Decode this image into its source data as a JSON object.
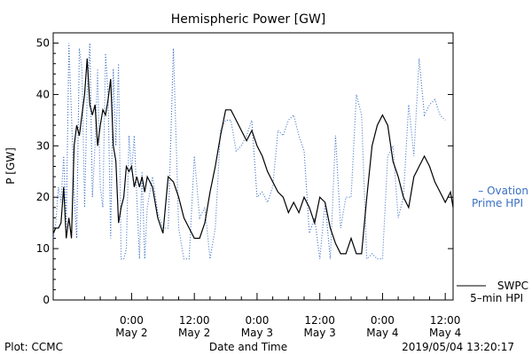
{
  "chart_data": {
    "type": "line",
    "title": "Hemispheric Power [GW]",
    "ylabel": "P [GW]",
    "xlabel": "Date and Time",
    "ylim": [
      0,
      52
    ],
    "xlim_hours": [
      -15,
      61.5
    ],
    "yticks": [
      0,
      10,
      20,
      30,
      40,
      50
    ],
    "xticks": [
      {
        "hour": 0,
        "time": "0:00",
        "date": "May 2"
      },
      {
        "hour": 12,
        "time": "12:00",
        "date": "May 2"
      },
      {
        "hour": 24,
        "time": "0:00",
        "date": "May 3"
      },
      {
        "hour": 36,
        "time": "12:00",
        "date": "May 3"
      },
      {
        "hour": 48,
        "time": "0:00",
        "date": "May 4"
      },
      {
        "hour": 60,
        "time": "12:00",
        "date": "May 4"
      }
    ],
    "series": [
      {
        "name_lines": [
          "– Ovation",
          "Prime HPI"
        ],
        "color": "#3a6fc4",
        "style": "dotted",
        "x": [
          -15,
          -14.5,
          -14,
          -13.5,
          -13,
          -12.5,
          -12,
          -11.5,
          -11,
          -10.5,
          -10,
          -9.5,
          -9,
          -8.5,
          -8,
          -7.5,
          -7,
          -6.5,
          -6,
          -5.5,
          -5,
          -4.5,
          -4,
          -3.5,
          -3,
          -2.5,
          -2,
          -1.5,
          -1,
          -0.5,
          0,
          0.5,
          1,
          1.5,
          2,
          2.5,
          3,
          4,
          5,
          6,
          7,
          8,
          9,
          10,
          11,
          12,
          13,
          14,
          15,
          16,
          17,
          18,
          19,
          20,
          21,
          22,
          23,
          24,
          25,
          26,
          27,
          28,
          29,
          30,
          31,
          32,
          33,
          34,
          35,
          36,
          37,
          38,
          39,
          40,
          41,
          42,
          43,
          44,
          45,
          46,
          47,
          48,
          49,
          50,
          51,
          52,
          53,
          54,
          55,
          56,
          57,
          58,
          59,
          60
        ],
        "y": [
          12,
          15,
          22,
          19,
          28,
          14,
          50,
          36,
          21,
          12,
          49,
          45,
          18,
          40,
          50,
          20,
          30,
          45,
          22,
          18,
          48,
          40,
          12,
          45,
          30,
          46,
          8,
          8,
          10,
          32,
          25,
          32,
          20,
          8,
          25,
          8,
          18,
          24,
          17,
          14,
          14,
          49,
          14,
          8,
          8,
          28,
          16,
          18,
          8,
          14,
          33,
          35,
          35,
          29,
          30,
          32,
          35,
          20,
          21,
          19,
          22,
          33,
          32,
          35,
          36,
          32,
          29,
          13,
          16,
          8,
          19,
          8,
          32,
          14,
          20,
          20,
          40,
          36,
          8,
          9,
          8,
          8,
          28,
          30,
          16,
          20,
          38,
          28,
          47,
          36,
          38,
          39,
          36,
          35
        ]
      },
      {
        "name_lines": [
          "SWPC",
          "5–min HPI"
        ],
        "color": "#000000",
        "style": "solid",
        "x": [
          -15,
          -14.5,
          -14,
          -13.5,
          -13,
          -12.5,
          -12,
          -11.5,
          -11,
          -10.5,
          -10,
          -9.5,
          -9,
          -8.5,
          -8,
          -7.5,
          -7,
          -6.5,
          -6,
          -5.5,
          -5,
          -4.5,
          -4,
          -3.5,
          -3,
          -2.5,
          -2,
          -1.5,
          -1,
          -0.5,
          0,
          0.5,
          1,
          1.5,
          2,
          2.5,
          3,
          4,
          5,
          6,
          7,
          8,
          9,
          10,
          11,
          12,
          13,
          14,
          15,
          16,
          17,
          18,
          19,
          20,
          21,
          22,
          23,
          24,
          25,
          26,
          27,
          28,
          29,
          30,
          31,
          32,
          33,
          34,
          35,
          36,
          37,
          38,
          39,
          40,
          41,
          42,
          43,
          44,
          45,
          46,
          47,
          48,
          49,
          50,
          51,
          52,
          53,
          54,
          55,
          56,
          57,
          58,
          59,
          60,
          61,
          61.5
        ],
        "y": [
          13,
          14,
          14,
          15,
          22,
          12,
          16,
          12,
          30,
          34,
          32,
          36,
          40,
          47,
          38,
          36,
          38,
          30,
          34,
          37,
          36,
          39,
          43,
          30,
          27,
          15,
          18,
          20,
          26,
          25,
          26,
          22,
          24,
          22,
          24,
          21,
          24,
          22,
          16,
          13,
          24,
          23,
          20,
          16,
          14,
          12,
          12,
          15,
          21,
          26,
          32,
          37,
          37,
          35,
          33,
          31,
          33,
          30,
          28,
          25,
          23,
          21,
          20,
          17,
          19,
          17,
          20,
          18,
          15,
          20,
          19,
          14,
          11,
          9,
          9,
          12,
          9,
          9,
          20,
          30,
          34,
          36,
          34,
          27,
          24,
          20,
          18,
          24,
          26,
          28,
          26,
          23,
          21,
          19,
          21,
          18
        ]
      }
    ],
    "footer": {
      "left": "Plot: CCMC",
      "right": "2019/05/04 13:20:17"
    }
  }
}
